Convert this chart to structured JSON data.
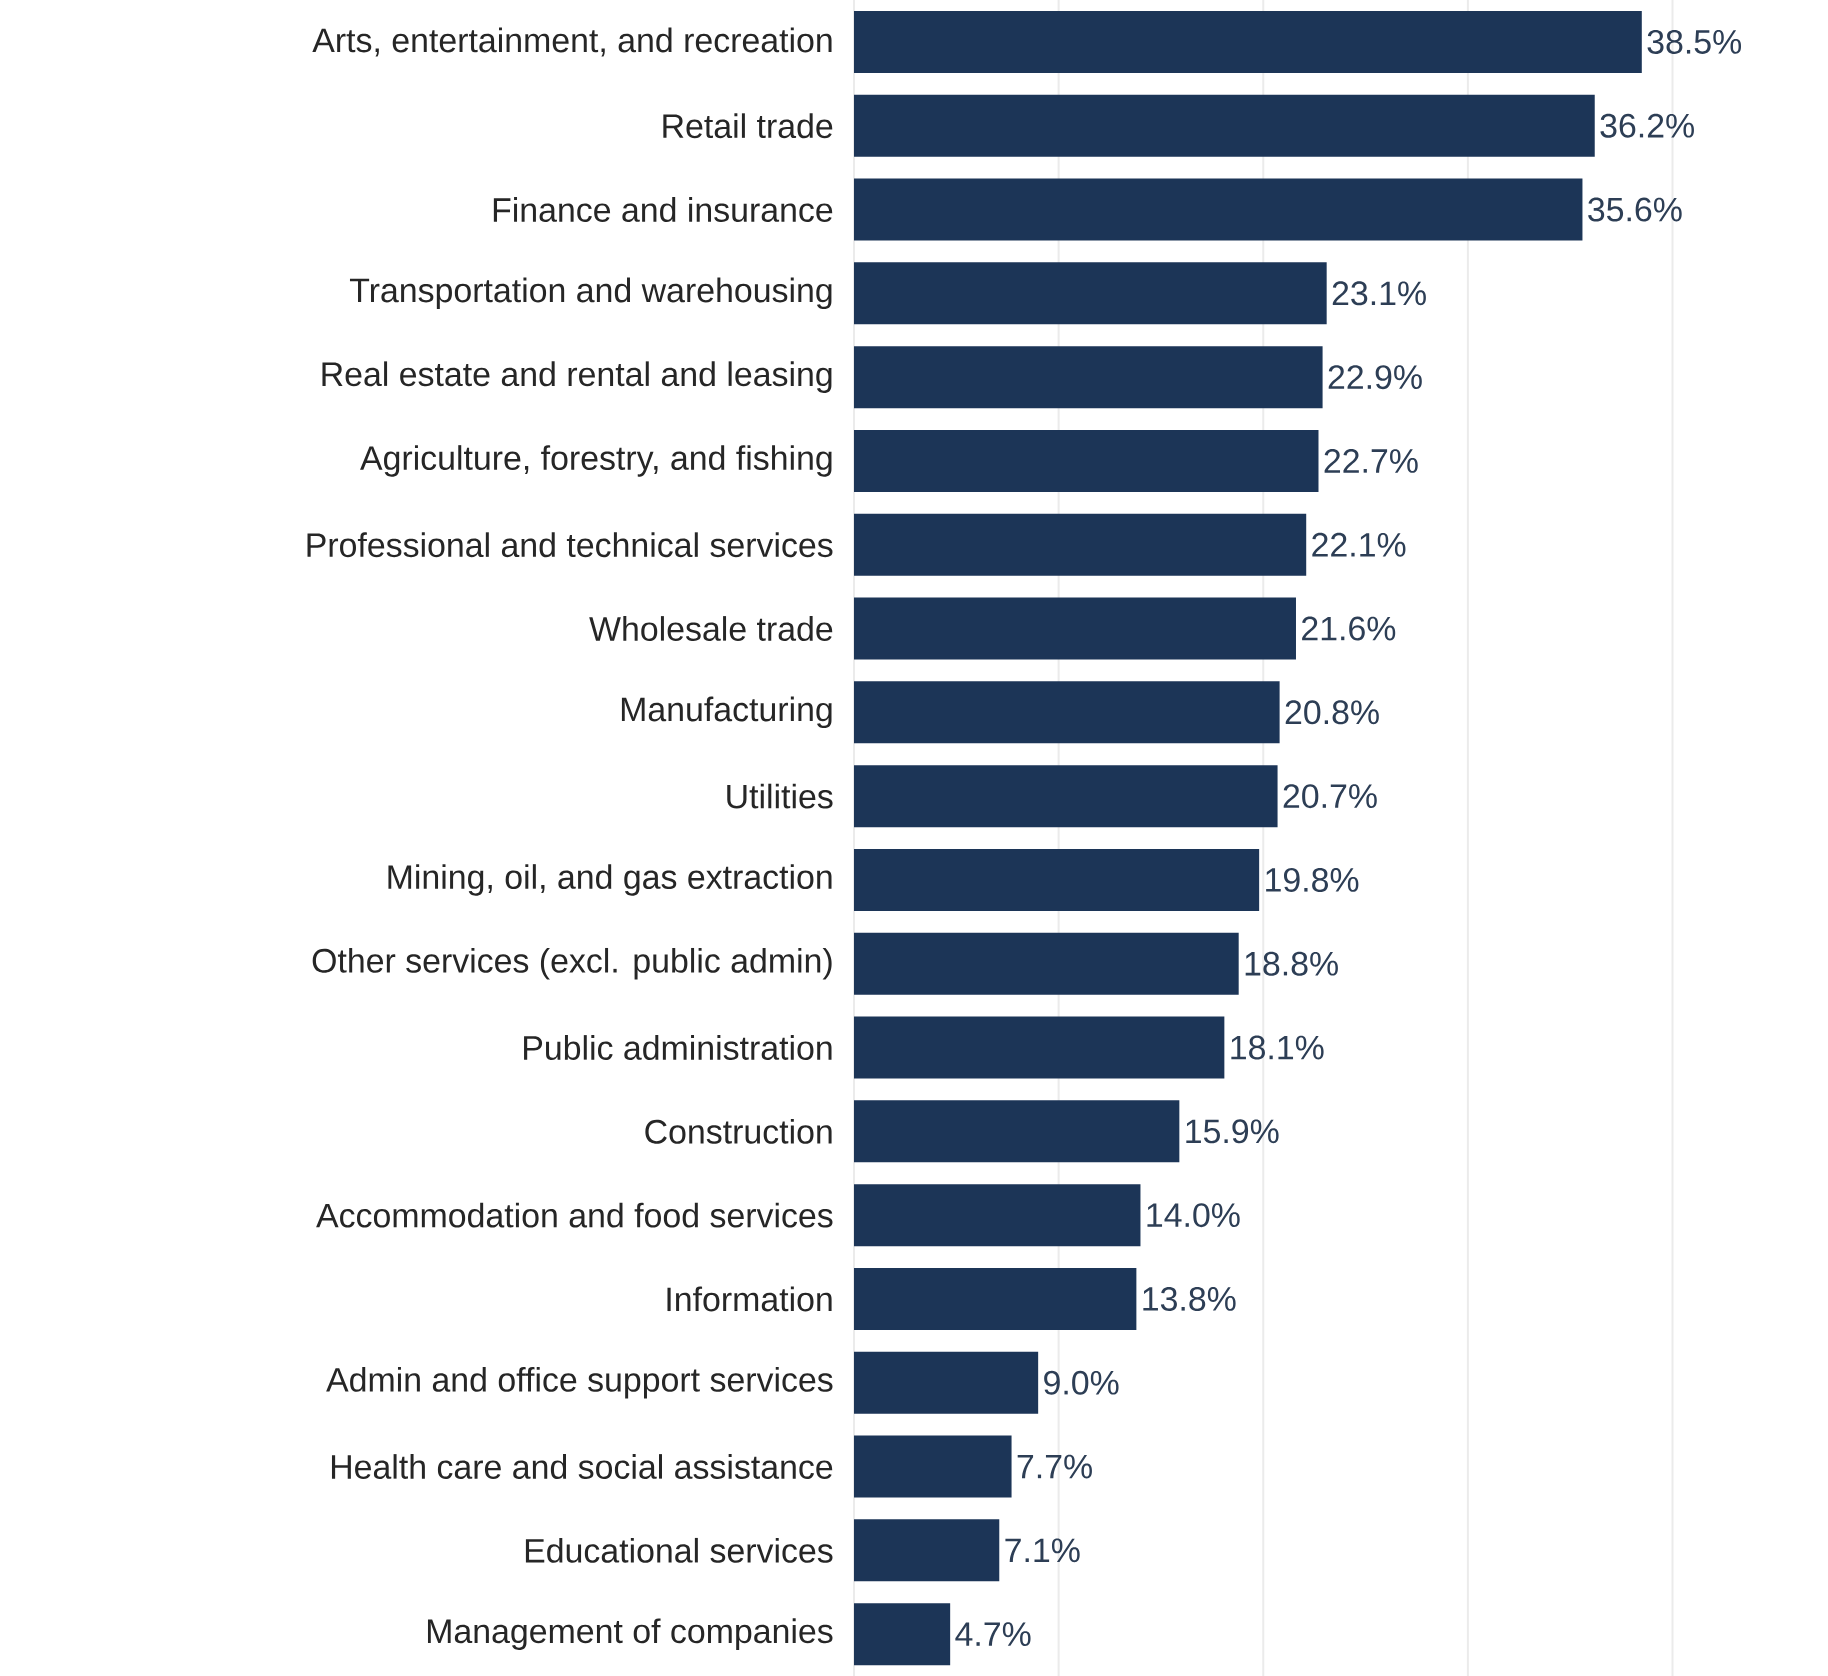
{
  "chart_data": {
    "type": "bar",
    "orientation": "horizontal",
    "categories": [
      "Arts, entertainment, and recreation",
      "Retail trade",
      "Finance and insurance",
      "Transportation and warehousing",
      "Real estate and rental and leasing",
      "Agriculture, forestry, and fishing",
      "Professional and technical services",
      "Wholesale trade",
      "Manufacturing",
      "Utilities",
      "Mining, oil, and gas extraction",
      "Other services (excl. public admin)",
      "Public administration",
      "Construction",
      "Accommodation and food services",
      "Information",
      "Admin and office support services",
      "Health care and social assistance",
      "Educational services",
      "Management of companies"
    ],
    "values": [
      38.5,
      36.2,
      35.6,
      23.1,
      22.9,
      22.7,
      22.1,
      21.6,
      20.8,
      20.7,
      19.8,
      18.8,
      18.1,
      15.9,
      14.0,
      13.8,
      9.0,
      7.7,
      7.1,
      4.7
    ],
    "value_labels": [
      "38.5%",
      "36.2%",
      "35.6%",
      "23.1%",
      "22.9%",
      "22.7%",
      "22.1%",
      "21.6%",
      "20.8%",
      "20.7%",
      "19.8%",
      "18.8%",
      "18.1%",
      "15.9%",
      "14.0%",
      "13.8%",
      "9.0%",
      "7.7%",
      "7.1%",
      "4.7%"
    ],
    "color": "#1c3557",
    "xticks": [
      {
        "value": 0,
        "label": null
      },
      {
        "value": 10,
        "label": null
      },
      {
        "value": 20,
        "label": null
      },
      {
        "value": 30,
        "label": null
      },
      {
        "value": 40,
        "label": null
      }
    ],
    "grid": "x",
    "tick_labels": "y"
  }
}
